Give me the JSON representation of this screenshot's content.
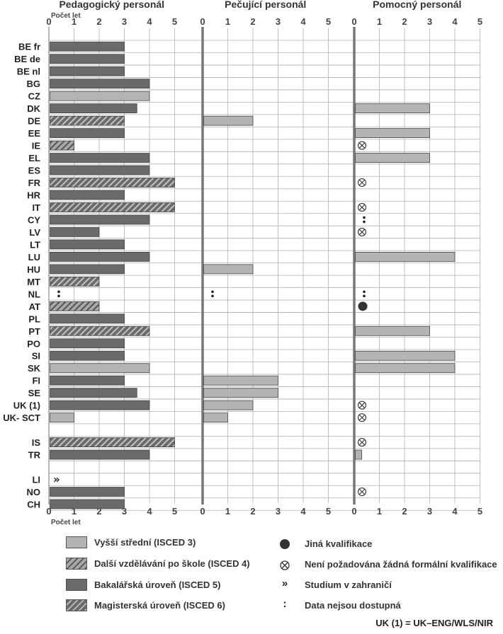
{
  "chart_data": {
    "type": "bar",
    "orientation": "horizontal",
    "xlabel": "Počet let",
    "xlim": [
      0,
      5
    ],
    "x_ticks": [
      "0",
      "1",
      "2",
      "3",
      "4",
      "5"
    ],
    "categories": [
      "BE fr",
      "BE de",
      "BE nl",
      "BG",
      "CZ",
      "DK",
      "DE",
      "EE",
      "IE",
      "EL",
      "ES",
      "FR",
      "HR",
      "IT",
      "CY",
      "LV",
      "LT",
      "LU",
      "HU",
      "MT",
      "NL",
      "AT",
      "PL",
      "PT",
      "PO",
      "SI",
      "SK",
      "FI",
      "SE",
      "UK (1)",
      "UK- SCT",
      "",
      "IS",
      "TR",
      "",
      "LI",
      "NO",
      "CH"
    ],
    "panels": [
      {
        "title": "Pedagogický personál",
        "bars": [
          {
            "v": 3,
            "lvl": "bak"
          },
          {
            "v": 3,
            "lvl": "bak"
          },
          {
            "v": 3,
            "lvl": "bak"
          },
          {
            "v": 4,
            "lvl": "bak"
          },
          {
            "v": 4,
            "lvl": "vss"
          },
          {
            "v": 3.5,
            "lvl": "bak"
          },
          {
            "v": 3,
            "lvl": "mag"
          },
          {
            "v": 3,
            "lvl": "bak"
          },
          {
            "v": 1,
            "lvl": "dal"
          },
          {
            "v": 4,
            "lvl": "bak"
          },
          {
            "v": 4,
            "lvl": "bak"
          },
          {
            "v": 5,
            "lvl": "mag"
          },
          {
            "v": 3,
            "lvl": "bak"
          },
          {
            "v": 5,
            "lvl": "mag"
          },
          {
            "v": 4,
            "lvl": "bak"
          },
          {
            "v": 2,
            "lvl": "bak"
          },
          {
            "v": 3,
            "lvl": "bak"
          },
          {
            "v": 4,
            "lvl": "bak"
          },
          {
            "v": 3,
            "lvl": "bak"
          },
          {
            "v": 2,
            "lvl": "mag"
          },
          {
            "sym": "colon"
          },
          {
            "v": 2,
            "lvl": "dal"
          },
          {
            "v": 3,
            "lvl": "bak"
          },
          {
            "v": 4,
            "lvl": "mag"
          },
          {
            "v": 3,
            "lvl": "bak"
          },
          {
            "v": 3,
            "lvl": "bak"
          },
          {
            "v": 4,
            "lvl": "vss"
          },
          {
            "v": 3,
            "lvl": "bak"
          },
          {
            "v": 3.5,
            "lvl": "bak"
          },
          {
            "v": 4,
            "lvl": "bak"
          },
          {
            "v": 1,
            "lvl": "vss"
          },
          null,
          {
            "v": 5,
            "lvl": "mag"
          },
          {
            "v": 4,
            "lvl": "bak"
          },
          null,
          {
            "sym": "abroad"
          },
          {
            "v": 3,
            "lvl": "bak"
          },
          {
            "v": 3,
            "lvl": "bak"
          }
        ]
      },
      {
        "title": "Pečující personál",
        "bars": [
          null,
          null,
          null,
          null,
          null,
          null,
          {
            "v": 2,
            "lvl": "vss"
          },
          null,
          null,
          null,
          null,
          null,
          null,
          null,
          null,
          null,
          null,
          null,
          {
            "v": 2,
            "lvl": "vss"
          },
          null,
          {
            "sym": "colon"
          },
          null,
          null,
          null,
          null,
          null,
          null,
          {
            "v": 3,
            "lvl": "vss"
          },
          {
            "v": 3,
            "lvl": "vss"
          },
          {
            "v": 2,
            "lvl": "vss"
          },
          {
            "v": 1,
            "lvl": "vss"
          },
          null,
          null,
          null,
          null,
          null,
          null,
          null
        ]
      },
      {
        "title": "Pomocný personál",
        "bars": [
          null,
          null,
          null,
          null,
          null,
          {
            "v": 3,
            "lvl": "vss"
          },
          null,
          {
            "v": 3,
            "lvl": "vss"
          },
          {
            "sym": "none"
          },
          {
            "v": 3,
            "lvl": "vss"
          },
          null,
          {
            "sym": "none"
          },
          null,
          {
            "sym": "none"
          },
          {
            "sym": "colon"
          },
          {
            "sym": "none"
          },
          null,
          {
            "v": 4,
            "lvl": "vss"
          },
          null,
          null,
          {
            "sym": "colon"
          },
          {
            "sym": "other"
          },
          null,
          {
            "v": 3,
            "lvl": "vss"
          },
          null,
          {
            "v": 4,
            "lvl": "vss"
          },
          {
            "v": 4,
            "lvl": "vss"
          },
          null,
          null,
          {
            "sym": "none"
          },
          {
            "sym": "none"
          },
          null,
          {
            "sym": "none"
          },
          {
            "v": 0.3,
            "lvl": "vss"
          },
          null,
          null,
          {
            "sym": "none"
          },
          null
        ]
      }
    ],
    "legend": {
      "vss": "Vyšší střední (ISCED 3)",
      "dal": "Další vzdělávání po škole (ISCED 4)",
      "bak": "Bakalářská úroveň (ISCED 5)",
      "mag": "Magisterská úroveň (ISCED 6)",
      "other": "Jiná kvalifikace",
      "none": "Není požadována žádná formální kvalifikace",
      "abroad": "Studium v zahraničí",
      "colon": "Data nejsou dostupná"
    },
    "footnote": "UK (1) = UK–ENG/WLS/NIR"
  },
  "colors": {
    "vss": "#b4b4b4",
    "bak": "#6a6a6a",
    "hatch_bg": "#a8a8a8",
    "hatch_line": "#555555",
    "grid": "#b0b0b0",
    "divider": "#777777"
  }
}
